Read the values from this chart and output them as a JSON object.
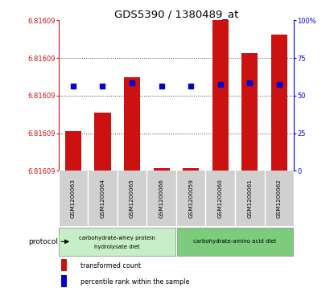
{
  "title": "GDS5390 / 1380489_at",
  "samples": [
    "GSM1200063",
    "GSM1200064",
    "GSM1200065",
    "GSM1200066",
    "GSM1200059",
    "GSM1200060",
    "GSM1200061",
    "GSM1200062"
  ],
  "red_values": [
    0.265,
    0.385,
    0.625,
    0.02,
    0.02,
    1.0,
    0.785,
    0.905
  ],
  "blue_values": [
    0.565,
    0.565,
    0.585,
    0.565,
    0.565,
    0.575,
    0.585,
    0.575
  ],
  "ytick_labels_left": [
    "6.81609",
    "6.81609",
    "6.81609",
    "6.81609",
    "6.81609"
  ],
  "ytick_positions": [
    0.0,
    0.25,
    0.5,
    0.75,
    1.0
  ],
  "ytick_labels_right": [
    "0",
    "25",
    "50",
    "75",
    "100%"
  ],
  "group1_label_line1": "carbohydrate-whey protein",
  "group1_label_line2": "hydrolysate diet",
  "group2_label": "carbohydrate-amino acid diet",
  "group1_color": "#c8eec8",
  "group2_color": "#7dcc7d",
  "bar_red": "#cc1111",
  "dot_blue": "#0000cc",
  "sample_bg": "#d0d0d0",
  "legend_red": "transformed count",
  "legend_blue": "percentile rank within the sample"
}
